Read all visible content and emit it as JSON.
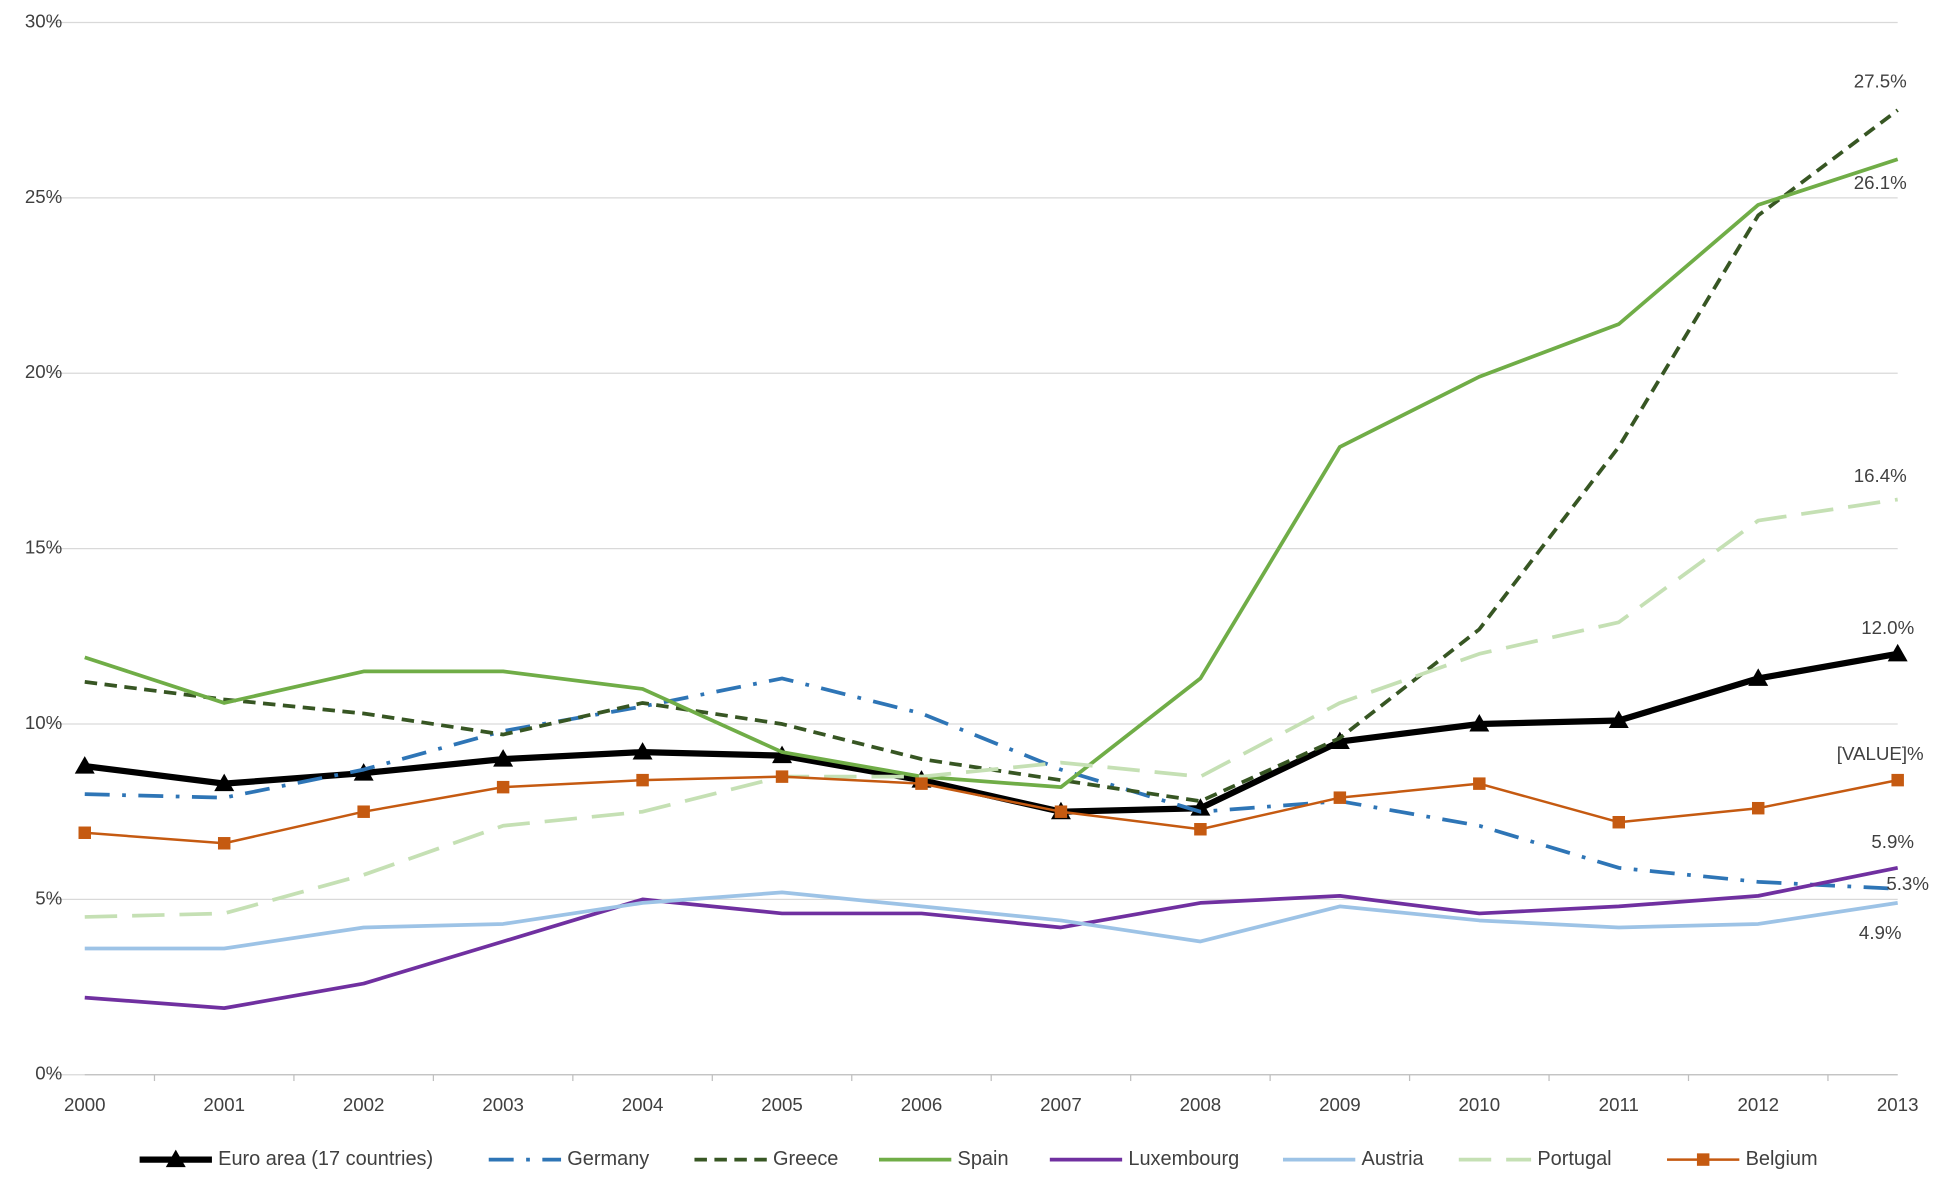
{
  "chart_data": {
    "type": "line",
    "categories": [
      "2000",
      "2001",
      "2002",
      "2003",
      "2004",
      "2005",
      "2006",
      "2007",
      "2008",
      "2009",
      "2010",
      "2011",
      "2012",
      "2013"
    ],
    "ylim": [
      0,
      30
    ],
    "yticks": [
      {
        "value": 0,
        "label": "0%"
      },
      {
        "value": 5,
        "label": "5%"
      },
      {
        "value": 10,
        "label": "10%"
      },
      {
        "value": 15,
        "label": "15%"
      },
      {
        "value": 20,
        "label": "20%"
      },
      {
        "value": 25,
        "label": "25%"
      },
      {
        "value": 30,
        "label": "30%"
      }
    ],
    "grid": true,
    "legend": "bottom",
    "series": [
      {
        "name": "Euro area (17 countries)",
        "color": "#000000",
        "dash": "solid",
        "marker": "triangle",
        "width": 5,
        "values": [
          8.8,
          8.3,
          8.6,
          9.0,
          9.2,
          9.1,
          8.4,
          7.5,
          7.6,
          9.5,
          10.0,
          10.1,
          11.3,
          12.0
        ],
        "value_labels": [
          null,
          null,
          null,
          null,
          null,
          null,
          null,
          null,
          null,
          null,
          null,
          null,
          null,
          "12.0%"
        ]
      },
      {
        "name": "Germany",
        "color": "#2e75b6",
        "dash": "dashdot",
        "marker": "none",
        "width": 3,
        "values": [
          8.0,
          7.9,
          8.7,
          9.8,
          10.5,
          11.3,
          10.3,
          8.7,
          7.5,
          7.8,
          7.1,
          5.9,
          5.5,
          5.3
        ],
        "value_labels": [
          null,
          null,
          null,
          null,
          null,
          null,
          null,
          null,
          null,
          null,
          null,
          null,
          null,
          "5.3%"
        ]
      },
      {
        "name": "Greece",
        "color": "#375623",
        "dash": "dash",
        "marker": "none",
        "width": 3,
        "values": [
          11.2,
          10.7,
          10.3,
          9.7,
          10.6,
          10.0,
          9.0,
          8.4,
          7.8,
          9.6,
          12.7,
          17.9,
          24.5,
          27.5
        ],
        "value_labels": [
          null,
          null,
          null,
          null,
          null,
          null,
          null,
          null,
          null,
          null,
          null,
          null,
          null,
          "27.5%"
        ]
      },
      {
        "name": "Spain",
        "color": "#70ad47",
        "dash": "solid",
        "marker": "none",
        "width": 3,
        "values": [
          11.9,
          10.6,
          11.5,
          11.5,
          11.0,
          9.2,
          8.5,
          8.2,
          11.3,
          17.9,
          19.9,
          21.4,
          24.8,
          26.1
        ],
        "value_labels": [
          null,
          null,
          null,
          null,
          null,
          null,
          null,
          null,
          null,
          null,
          null,
          null,
          null,
          "26.1%"
        ]
      },
      {
        "name": "Luxembourg",
        "color": "#7030a0",
        "dash": "solid",
        "marker": "none",
        "width": 3,
        "values": [
          2.2,
          1.9,
          2.6,
          3.8,
          5.0,
          4.6,
          4.6,
          4.2,
          4.9,
          5.1,
          4.6,
          4.8,
          5.1,
          5.9
        ],
        "value_labels": [
          null,
          null,
          null,
          null,
          null,
          null,
          null,
          null,
          null,
          null,
          null,
          null,
          null,
          "5.9%"
        ]
      },
      {
        "name": "Austria",
        "color": "#9dc3e6",
        "dash": "solid",
        "marker": "none",
        "width": 3,
        "values": [
          3.6,
          3.6,
          4.2,
          4.3,
          4.9,
          5.2,
          4.8,
          4.4,
          3.8,
          4.8,
          4.4,
          4.2,
          4.3,
          4.9
        ],
        "value_labels": [
          null,
          null,
          null,
          null,
          null,
          null,
          null,
          null,
          null,
          null,
          null,
          null,
          null,
          "4.9%"
        ]
      },
      {
        "name": "Portugal",
        "color": "#c5e0b4",
        "dash": "longdash",
        "marker": "none",
        "width": 3,
        "values": [
          4.5,
          4.6,
          5.7,
          7.1,
          7.5,
          8.5,
          8.5,
          8.9,
          8.5,
          10.6,
          12.0,
          12.9,
          15.8,
          16.4
        ],
        "value_labels": [
          null,
          null,
          null,
          null,
          null,
          null,
          null,
          null,
          null,
          null,
          null,
          null,
          null,
          "16.4%"
        ]
      },
      {
        "name": "Belgium",
        "color": "#c55a11",
        "dash": "solid",
        "marker": "square",
        "width": 2,
        "values": [
          6.9,
          6.6,
          7.5,
          8.2,
          8.4,
          8.5,
          8.3,
          7.5,
          7.0,
          7.9,
          8.3,
          7.2,
          7.6,
          8.4
        ],
        "value_labels": [
          null,
          null,
          null,
          null,
          null,
          null,
          null,
          null,
          null,
          null,
          null,
          null,
          null,
          "[VALUE]%"
        ]
      }
    ]
  }
}
